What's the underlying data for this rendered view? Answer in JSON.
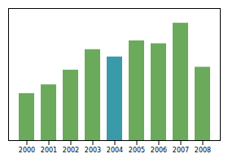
{
  "chart_data": {
    "type": "bar",
    "categories": [
      "2000",
      "2001",
      "2002",
      "2003",
      "2004",
      "2005",
      "2006",
      "2007",
      "2008"
    ],
    "values": [
      32,
      38,
      48,
      62,
      57,
      68,
      66,
      80,
      50
    ],
    "colors": [
      "#6aaa5a",
      "#6aaa5a",
      "#6aaa5a",
      "#6aaa5a",
      "#3a9aaa",
      "#6aaa5a",
      "#6aaa5a",
      "#6aaa5a",
      "#6aaa5a"
    ],
    "ylim": [
      0,
      90
    ],
    "yticks": [],
    "grid": false,
    "tick_labels": "x"
  }
}
